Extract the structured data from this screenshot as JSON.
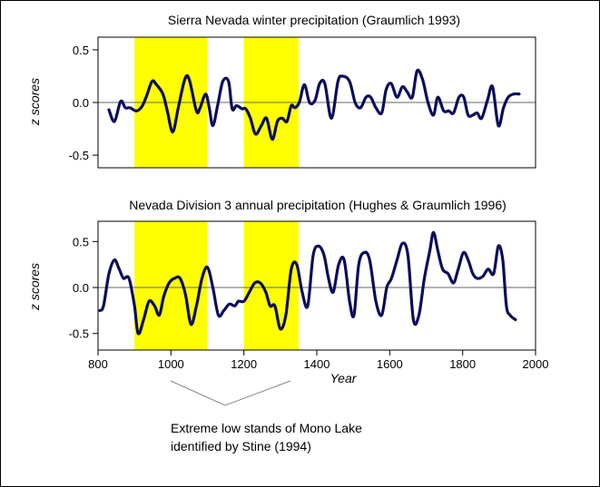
{
  "chart_data": [
    {
      "type": "line",
      "title": "Sierra Nevada winter precipitation (Graumlich 1993)",
      "ylabel": "z scores",
      "xlim": [
        800,
        2000
      ],
      "ylim": [
        -0.62,
        0.62
      ],
      "yticks": [
        0.5,
        0.0,
        -0.5
      ],
      "ytick_labels": [
        "0.5",
        "0.0",
        "-0.5"
      ],
      "grid": false,
      "zero_line": true,
      "highlights": [
        {
          "x0": 900,
          "x1": 1100,
          "color": "#ffff00"
        },
        {
          "x0": 1200,
          "x1": 1350,
          "color": "#ffff00"
        }
      ],
      "series": [
        {
          "color": "#0c0c5a",
          "x": [
            830,
            845,
            862,
            875,
            888,
            905,
            920,
            932,
            948,
            960,
            978,
            990,
            1005,
            1020,
            1038,
            1050,
            1070,
            1080,
            1095,
            1105,
            1115,
            1128,
            1142,
            1158,
            1168,
            1180,
            1195,
            1205,
            1218,
            1232,
            1248,
            1262,
            1278,
            1292,
            1305,
            1318,
            1330,
            1340,
            1352,
            1366,
            1380,
            1395,
            1408,
            1422,
            1440,
            1458,
            1470,
            1490,
            1505,
            1520,
            1535,
            1548,
            1562,
            1578,
            1590,
            1604,
            1620,
            1635,
            1648,
            1662,
            1675,
            1690,
            1705,
            1720,
            1732,
            1748,
            1762,
            1775,
            1790,
            1803,
            1815,
            1828,
            1840,
            1852,
            1868,
            1882,
            1898,
            1912,
            1925,
            1940,
            1955
          ],
          "y": [
            -0.07,
            -0.18,
            0.01,
            -0.05,
            -0.05,
            -0.08,
            -0.04,
            0.05,
            0.2,
            0.17,
            0.08,
            -0.08,
            -0.28,
            -0.05,
            0.22,
            0.22,
            -0.08,
            -0.05,
            0.08,
            -0.05,
            -0.22,
            -0.03,
            0.2,
            0.2,
            -0.06,
            -0.03,
            -0.06,
            -0.06,
            -0.15,
            -0.3,
            -0.22,
            -0.15,
            -0.35,
            -0.18,
            -0.15,
            -0.18,
            -0.03,
            -0.05,
            0.0,
            0.17,
            0.0,
            0.02,
            0.18,
            0.18,
            -0.15,
            0.2,
            0.25,
            0.2,
            0.0,
            -0.05,
            0.05,
            0.05,
            -0.05,
            -0.1,
            0.12,
            0.18,
            0.05,
            0.15,
            0.1,
            0.05,
            0.3,
            0.22,
            0.0,
            -0.12,
            0.05,
            -0.08,
            -0.08,
            -0.1,
            0.05,
            0.05,
            -0.12,
            -0.12,
            -0.1,
            -0.15,
            0.02,
            0.15,
            -0.22,
            -0.05,
            0.05,
            0.08,
            0.08
          ]
        }
      ]
    },
    {
      "type": "line",
      "title": "Nevada Division 3 annual precipitation (Hughes & Graumlich 1996)",
      "xlabel": "Year",
      "ylabel": "z scores",
      "xlim": [
        800,
        2000
      ],
      "ylim": [
        -0.68,
        0.72
      ],
      "xticks": [
        800,
        1000,
        1200,
        1400,
        1600,
        1800,
        2000
      ],
      "xtick_labels": [
        "800",
        "1000",
        "1200",
        "1400",
        "1600",
        "1800",
        "2000"
      ],
      "yticks": [
        0.5,
        0.0,
        -0.5
      ],
      "ytick_labels": [
        "0.5",
        "0.0",
        "-0.5"
      ],
      "grid": false,
      "zero_line": true,
      "highlights": [
        {
          "x0": 900,
          "x1": 1100,
          "color": "#ffff00"
        },
        {
          "x0": 1200,
          "x1": 1350,
          "color": "#ffff00"
        }
      ],
      "series": [
        {
          "color": "#0c0c5a",
          "x": [
            805,
            815,
            830,
            845,
            858,
            870,
            885,
            900,
            910,
            925,
            940,
            955,
            968,
            980,
            995,
            1010,
            1025,
            1040,
            1055,
            1070,
            1085,
            1100,
            1115,
            1130,
            1145,
            1160,
            1175,
            1185,
            1200,
            1215,
            1230,
            1245,
            1260,
            1272,
            1285,
            1300,
            1315,
            1330,
            1345,
            1360,
            1375,
            1390,
            1405,
            1420,
            1432,
            1445,
            1460,
            1475,
            1490,
            1502,
            1515,
            1530,
            1545,
            1562,
            1578,
            1592,
            1605,
            1620,
            1635,
            1650,
            1665,
            1680,
            1695,
            1710,
            1720,
            1732,
            1745,
            1760,
            1775,
            1788,
            1802,
            1815,
            1828,
            1840,
            1855,
            1870,
            1885,
            1898,
            1910,
            1920,
            1930,
            1945
          ],
          "y": [
            -0.25,
            -0.2,
            0.15,
            0.3,
            0.2,
            0.1,
            0.1,
            -0.2,
            -0.5,
            -0.35,
            -0.15,
            -0.2,
            -0.3,
            -0.1,
            0.05,
            0.1,
            0.1,
            -0.08,
            -0.4,
            -0.2,
            0.1,
            0.22,
            0.0,
            -0.3,
            -0.25,
            -0.18,
            -0.2,
            -0.15,
            -0.15,
            -0.05,
            0.05,
            0.05,
            -0.05,
            -0.2,
            -0.2,
            -0.45,
            -0.3,
            0.2,
            0.25,
            -0.05,
            -0.2,
            0.35,
            0.45,
            0.35,
            0.1,
            -0.05,
            0.25,
            0.3,
            -0.15,
            -0.3,
            0.25,
            0.38,
            0.3,
            -0.15,
            -0.3,
            0.0,
            0.1,
            0.3,
            0.48,
            0.35,
            -0.35,
            -0.3,
            0.1,
            0.4,
            0.6,
            0.4,
            0.2,
            0.15,
            0.05,
            0.2,
            0.38,
            0.3,
            0.15,
            0.1,
            0.12,
            0.2,
            0.15,
            0.45,
            0.3,
            -0.2,
            -0.3,
            -0.35
          ]
        }
      ]
    }
  ],
  "annotation": {
    "line1": "Extreme low stands of Mono Lake",
    "line2": "identified by Stine (1994)"
  }
}
